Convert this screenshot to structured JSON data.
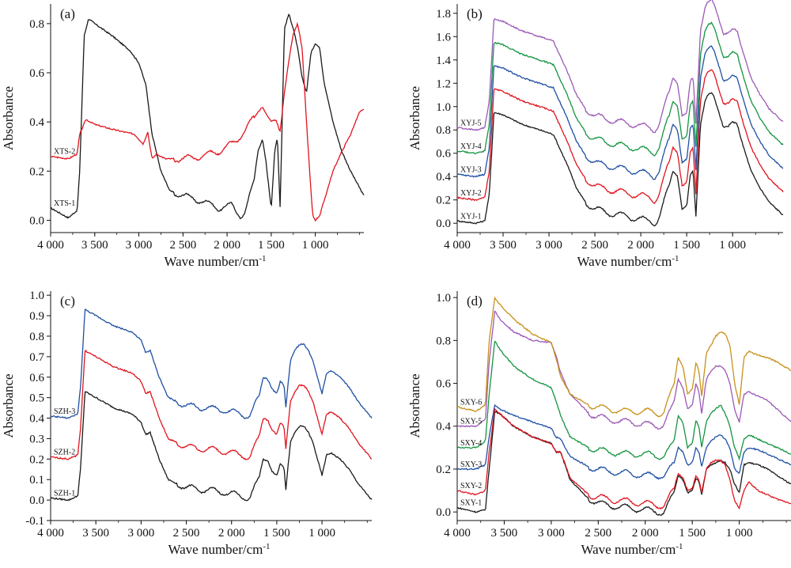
{
  "colors": {
    "black": "#1a1a1a",
    "red": "#e0141e",
    "blue": "#1f4fa3",
    "green": "#149440",
    "purple": "#9b59b6",
    "gold": "#c8901a"
  },
  "chart_data": [
    {
      "type": "line",
      "panel_label": "(a)",
      "xlabel": "Wave number/cm",
      "xlabel_sup": "-1",
      "ylabel": "Absorbance",
      "xlim": [
        4000,
        450
      ],
      "ylim": [
        -0.05,
        0.88
      ],
      "xticks": [
        4000,
        3500,
        3000,
        2500,
        2000,
        1500,
        1000
      ],
      "xtick_labels": [
        "4 000",
        "3 500",
        "3 000",
        "2 500",
        "2 000",
        "1 500",
        "1 000"
      ],
      "yticks": [
        0.0,
        0.2,
        0.4,
        0.6,
        0.8
      ],
      "ytick_labels": [
        "0.0",
        "0.2",
        "0.4",
        "0.6",
        "0.8"
      ],
      "series": [
        {
          "name": "XTS-1",
          "color": "black",
          "x": [
            4000,
            3800,
            3700,
            3670,
            3620,
            3570,
            3500,
            3300,
            3100,
            3000,
            2920,
            2850,
            2750,
            2650,
            2500,
            2300,
            2100,
            1950,
            1850,
            1800,
            1700,
            1650,
            1600,
            1560,
            1500,
            1460,
            1430,
            1400,
            1350,
            1300,
            1250,
            1200,
            1150,
            1100,
            1050,
            1000,
            950,
            900,
            800,
            700,
            600,
            450
          ],
          "y": [
            0.05,
            0.01,
            0.04,
            0.2,
            0.75,
            0.82,
            0.8,
            0.75,
            0.69,
            0.64,
            0.55,
            0.35,
            0.2,
            0.12,
            0.1,
            0.08,
            0.05,
            0.06,
            0.02,
            0.03,
            0.15,
            0.28,
            0.33,
            0.24,
            0.05,
            0.28,
            0.34,
            0.05,
            0.78,
            0.84,
            0.78,
            0.7,
            0.58,
            0.52,
            0.68,
            0.72,
            0.7,
            0.56,
            0.4,
            0.28,
            0.2,
            0.1
          ]
        },
        {
          "name": "XTS-2",
          "color": "red",
          "x": [
            4000,
            3800,
            3700,
            3670,
            3600,
            3500,
            3300,
            3050,
            2950,
            2900,
            2850,
            2800,
            2700,
            2500,
            2300,
            2100,
            1900,
            1750,
            1650,
            1600,
            1550,
            1500,
            1450,
            1400,
            1350,
            1300,
            1250,
            1200,
            1150,
            1100,
            1050,
            1030,
            1000,
            950,
            900,
            800,
            700,
            600,
            500,
            450
          ],
          "y": [
            0.26,
            0.25,
            0.27,
            0.35,
            0.41,
            0.39,
            0.37,
            0.35,
            0.31,
            0.36,
            0.25,
            0.27,
            0.25,
            0.25,
            0.26,
            0.28,
            0.32,
            0.39,
            0.44,
            0.46,
            0.43,
            0.4,
            0.41,
            0.36,
            0.52,
            0.65,
            0.76,
            0.8,
            0.7,
            0.4,
            0.12,
            0.02,
            0.0,
            0.02,
            0.08,
            0.2,
            0.28,
            0.35,
            0.44,
            0.45
          ]
        }
      ]
    },
    {
      "type": "line",
      "panel_label": "(b)",
      "xlabel": "Wave number/cm",
      "xlabel_sup": "-1",
      "ylabel": "Absorbance",
      "xlim": [
        4000,
        450
      ],
      "ylim": [
        -0.08,
        1.88
      ],
      "xticks": [
        4000,
        3500,
        3000,
        2500,
        2000,
        1500,
        1000
      ],
      "xtick_labels": [
        "4 000",
        "3 500",
        "3 000",
        "2 500",
        "2 000",
        "1 500",
        "1 000"
      ],
      "yticks": [
        0.0,
        0.2,
        0.4,
        0.6,
        0.8,
        1.0,
        1.2,
        1.4,
        1.6,
        1.8
      ],
      "ytick_labels": [
        "0.0",
        "0.2",
        "0.4",
        "0.6",
        "0.8",
        "1.0",
        "1.2",
        "1.4",
        "1.6",
        "1.8"
      ],
      "series": [
        {
          "name": "XYJ-1",
          "color": "black",
          "offset": 0.0
        },
        {
          "name": "XYJ-2",
          "color": "red",
          "offset": 0.2
        },
        {
          "name": "XYJ-3",
          "color": "blue",
          "offset": 0.4
        },
        {
          "name": "XYJ-4",
          "color": "green",
          "offset": 0.6
        },
        {
          "name": "XYJ-5",
          "color": "purple",
          "offset": 0.8
        }
      ],
      "base_x": [
        4000,
        3800,
        3700,
        3650,
        3600,
        3500,
        3300,
        3100,
        2950,
        2900,
        2800,
        2700,
        2600,
        2500,
        2300,
        2100,
        1900,
        1850,
        1800,
        1700,
        1650,
        1600,
        1550,
        1500,
        1460,
        1430,
        1400,
        1350,
        1300,
        1270,
        1230,
        1200,
        1150,
        1100,
        1050,
        1000,
        950,
        900,
        800,
        700,
        600,
        450
      ],
      "base_y": [
        0.02,
        0.0,
        0.02,
        0.25,
        0.95,
        0.93,
        0.85,
        0.8,
        0.76,
        0.67,
        0.5,
        0.3,
        0.18,
        0.12,
        0.08,
        0.05,
        0.02,
        0.0,
        0.05,
        0.3,
        0.45,
        0.4,
        0.12,
        0.15,
        0.42,
        0.45,
        0.05,
        0.85,
        1.05,
        1.1,
        1.12,
        1.08,
        0.95,
        0.82,
        0.83,
        0.87,
        0.85,
        0.7,
        0.45,
        0.3,
        0.18,
        0.07
      ]
    },
    {
      "type": "line",
      "panel_label": "(c)",
      "xlabel": "Wave number/cm",
      "xlabel_sup": "-1",
      "ylabel": "Absorbance",
      "xlim": [
        4000,
        450
      ],
      "ylim": [
        -0.1,
        1.02
      ],
      "xticks": [
        4000,
        3500,
        3000,
        2500,
        2000,
        1500,
        1000
      ],
      "xtick_labels": [
        "4 000",
        "3 500",
        "3 000",
        "2 500",
        "2 000",
        "1 500",
        "1 000"
      ],
      "yticks": [
        -0.1,
        0.0,
        0.1,
        0.2,
        0.3,
        0.4,
        0.5,
        0.6,
        0.7,
        0.8,
        0.9,
        1.0
      ],
      "ytick_labels": [
        "-0.1",
        "0.0",
        "0.1",
        "0.2",
        "0.3",
        "0.4",
        "0.5",
        "0.6",
        "0.7",
        "0.8",
        "0.9",
        "1.0"
      ],
      "series": [
        {
          "name": "SZH-1",
          "color": "black",
          "offset": 0.0
        },
        {
          "name": "SZH-2",
          "color": "red",
          "offset": 0.2
        },
        {
          "name": "SZH-3",
          "color": "blue",
          "offset": 0.4
        }
      ],
      "base_x": [
        4000,
        3800,
        3700,
        3670,
        3620,
        3500,
        3300,
        3100,
        3000,
        2950,
        2900,
        2800,
        2700,
        2500,
        2300,
        2100,
        1900,
        1800,
        1700,
        1650,
        1600,
        1550,
        1500,
        1460,
        1420,
        1400,
        1350,
        1300,
        1250,
        1200,
        1150,
        1100,
        1050,
        1000,
        950,
        900,
        800,
        700,
        600,
        450
      ],
      "base_y": [
        0.01,
        0.0,
        0.02,
        0.15,
        0.53,
        0.5,
        0.45,
        0.42,
        0.38,
        0.32,
        0.33,
        0.2,
        0.1,
        0.06,
        0.05,
        0.04,
        0.02,
        0.01,
        0.1,
        0.2,
        0.19,
        0.14,
        0.12,
        0.18,
        0.16,
        0.05,
        0.28,
        0.33,
        0.36,
        0.36,
        0.33,
        0.28,
        0.2,
        0.12,
        0.22,
        0.23,
        0.2,
        0.15,
        0.08,
        0.0
      ]
    },
    {
      "type": "line",
      "panel_label": "(d)",
      "xlabel": "Wave number/cm",
      "xlabel_sup": "-1",
      "ylabel": "Absorbance",
      "xlim": [
        4000,
        450
      ],
      "ylim": [
        -0.04,
        1.03
      ],
      "xticks": [
        4000,
        3500,
        3000,
        2500,
        2000,
        1500,
        1000
      ],
      "xtick_labels": [
        "4 000",
        "3 500",
        "3 000",
        "2 500",
        "2 000",
        "1 500",
        "1 000"
      ],
      "yticks": [
        0.0,
        0.2,
        0.4,
        0.6,
        0.8,
        1.0
      ],
      "ytick_labels": [
        "0.0",
        "0.2",
        "0.4",
        "0.6",
        "0.8",
        "1.0"
      ],
      "series": [
        {
          "name": "SXY-1",
          "color": "black",
          "x": [
            4000,
            3800,
            3700,
            3660,
            3600,
            3550,
            3400,
            3200,
            3000,
            2950,
            2900,
            2800,
            2600,
            2400,
            2200,
            2000,
            1850,
            1800,
            1700,
            1650,
            1600,
            1550,
            1500,
            1460,
            1430,
            1400,
            1350,
            1300,
            1250,
            1200,
            1150,
            1100,
            1050,
            1000,
            950,
            900,
            800,
            700,
            600,
            450
          ],
          "y": [
            0.02,
            0.0,
            0.01,
            0.2,
            0.47,
            0.46,
            0.4,
            0.35,
            0.32,
            0.28,
            0.28,
            0.15,
            0.06,
            0.03,
            0.02,
            0.01,
            0.0,
            0.0,
            0.08,
            0.17,
            0.15,
            0.09,
            0.1,
            0.16,
            0.14,
            0.08,
            0.2,
            0.22,
            0.23,
            0.24,
            0.23,
            0.2,
            0.13,
            0.09,
            0.22,
            0.23,
            0.22,
            0.2,
            0.17,
            0.13
          ]
        },
        {
          "name": "SXY-2",
          "color": "red",
          "x": [
            4000,
            3800,
            3700,
            3660,
            3600,
            3550,
            3400,
            3200,
            3000,
            2950,
            2900,
            2800,
            2600,
            2400,
            2200,
            2000,
            1850,
            1800,
            1700,
            1650,
            1600,
            1550,
            1500,
            1460,
            1430,
            1400,
            1350,
            1300,
            1250,
            1200,
            1150,
            1100,
            1050,
            1000,
            950,
            900,
            800,
            700,
            600,
            450
          ],
          "y": [
            0.1,
            0.08,
            0.1,
            0.28,
            0.48,
            0.46,
            0.4,
            0.35,
            0.32,
            0.28,
            0.28,
            0.16,
            0.08,
            0.06,
            0.05,
            0.04,
            0.03,
            0.03,
            0.1,
            0.18,
            0.16,
            0.1,
            0.11,
            0.17,
            0.15,
            0.09,
            0.2,
            0.23,
            0.24,
            0.24,
            0.22,
            0.15,
            0.05,
            0.02,
            0.1,
            0.14,
            0.1,
            0.08,
            0.06,
            0.04
          ]
        },
        {
          "name": "SXY-3",
          "color": "blue",
          "x": [
            4000,
            3800,
            3700,
            3660,
            3600,
            3550,
            3400,
            3200,
            3000,
            2950,
            2900,
            2800,
            2600,
            2400,
            2200,
            2000,
            1850,
            1800,
            1700,
            1650,
            1600,
            1550,
            1500,
            1460,
            1430,
            1400,
            1350,
            1300,
            1250,
            1200,
            1150,
            1100,
            1050,
            1000,
            950,
            900,
            800,
            700,
            600,
            450
          ],
          "y": [
            0.2,
            0.2,
            0.22,
            0.35,
            0.5,
            0.48,
            0.45,
            0.42,
            0.39,
            0.35,
            0.34,
            0.26,
            0.21,
            0.19,
            0.18,
            0.17,
            0.17,
            0.17,
            0.22,
            0.3,
            0.28,
            0.22,
            0.23,
            0.3,
            0.28,
            0.21,
            0.3,
            0.33,
            0.35,
            0.36,
            0.34,
            0.3,
            0.2,
            0.18,
            0.28,
            0.3,
            0.29,
            0.27,
            0.25,
            0.22
          ]
        },
        {
          "name": "SXY-4",
          "color": "green",
          "x": [
            4000,
            3800,
            3700,
            3660,
            3600,
            3550,
            3400,
            3200,
            3000,
            2950,
            2900,
            2800,
            2600,
            2400,
            2200,
            2000,
            1850,
            1800,
            1700,
            1650,
            1600,
            1550,
            1500,
            1460,
            1430,
            1400,
            1350,
            1300,
            1250,
            1200,
            1150,
            1100,
            1050,
            1000,
            950,
            900,
            800,
            700,
            600,
            450
          ],
          "y": [
            0.3,
            0.3,
            0.33,
            0.55,
            0.8,
            0.76,
            0.68,
            0.62,
            0.58,
            0.52,
            0.45,
            0.35,
            0.3,
            0.28,
            0.27,
            0.27,
            0.26,
            0.26,
            0.32,
            0.45,
            0.42,
            0.3,
            0.32,
            0.43,
            0.4,
            0.3,
            0.42,
            0.46,
            0.48,
            0.5,
            0.46,
            0.4,
            0.3,
            0.25,
            0.34,
            0.36,
            0.34,
            0.32,
            0.3,
            0.27
          ]
        },
        {
          "name": "SXY-5",
          "color": "purple",
          "x": [
            4000,
            3800,
            3700,
            3660,
            3600,
            3550,
            3400,
            3200,
            3000,
            2950,
            2900,
            2800,
            2600,
            2400,
            2200,
            2000,
            1850,
            1800,
            1700,
            1650,
            1600,
            1550,
            1500,
            1460,
            1430,
            1400,
            1350,
            1300,
            1250,
            1200,
            1150,
            1100,
            1050,
            1000,
            950,
            900,
            800,
            700,
            600,
            450
          ],
          "y": [
            0.4,
            0.4,
            0.43,
            0.7,
            0.94,
            0.9,
            0.84,
            0.8,
            0.79,
            0.73,
            0.65,
            0.55,
            0.46,
            0.43,
            0.42,
            0.41,
            0.4,
            0.41,
            0.5,
            0.62,
            0.58,
            0.48,
            0.5,
            0.6,
            0.56,
            0.46,
            0.62,
            0.66,
            0.68,
            0.68,
            0.66,
            0.6,
            0.48,
            0.42,
            0.55,
            0.56,
            0.54,
            0.52,
            0.48,
            0.42
          ]
        },
        {
          "name": "SXY-6",
          "color": "gold",
          "x": [
            4000,
            3800,
            3700,
            3660,
            3600,
            3550,
            3400,
            3200,
            3000,
            2950,
            2900,
            2800,
            2600,
            2400,
            2200,
            2000,
            1850,
            1800,
            1700,
            1650,
            1600,
            1550,
            1500,
            1460,
            1430,
            1400,
            1350,
            1300,
            1250,
            1200,
            1150,
            1100,
            1050,
            1000,
            950,
            900,
            800,
            700,
            600,
            450
          ],
          "y": [
            0.49,
            0.47,
            0.5,
            0.8,
            1.0,
            0.97,
            0.9,
            0.83,
            0.79,
            0.72,
            0.63,
            0.55,
            0.5,
            0.48,
            0.47,
            0.47,
            0.46,
            0.47,
            0.58,
            0.72,
            0.68,
            0.55,
            0.57,
            0.7,
            0.66,
            0.54,
            0.74,
            0.78,
            0.82,
            0.84,
            0.83,
            0.78,
            0.6,
            0.5,
            0.72,
            0.75,
            0.73,
            0.72,
            0.7,
            0.66
          ]
        }
      ]
    }
  ]
}
